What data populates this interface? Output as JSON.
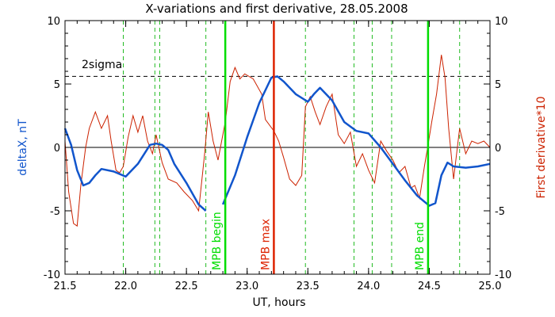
{
  "chart_data": {
    "type": "line",
    "title": "X-variations and first derivative, 28.05.2008",
    "xlabel": "UT, hours",
    "ylabel_left": "deltaX, nT",
    "ylabel_right": "First derivative*10",
    "xlim": [
      21.5,
      25.0
    ],
    "ylim": [
      -10,
      10
    ],
    "x_ticks": [
      "21.5",
      "22.0",
      "22.5",
      "23.0",
      "23.5",
      "24.0",
      "24.5",
      "25.0"
    ],
    "y_ticks_left": [
      "-10",
      "-5",
      "0",
      "5",
      "10"
    ],
    "y_ticks_right": [
      "-10",
      "-5",
      "0",
      "5",
      "10"
    ],
    "threshold": {
      "label": "2sigma",
      "value": 5.6
    },
    "zero_line": 0,
    "colors": {
      "deltaX": "#1155cc",
      "derivative": "#cc2200",
      "mpb": "#00dd00",
      "mpb_max": "#dd2200",
      "dashed_green": "#22bb22",
      "axis": "#000000"
    },
    "vertical_markers": [
      {
        "label": "MPB begin",
        "x": 22.82,
        "color": "#00dd00"
      },
      {
        "label": "MPB max",
        "x": 23.22,
        "color": "#dd2200"
      },
      {
        "label": "MPB end",
        "x": 24.49,
        "color": "#00dd00"
      }
    ],
    "dashed_lines_x": [
      21.98,
      22.24,
      22.28,
      22.66,
      23.48,
      23.88,
      24.03,
      24.19,
      24.75
    ],
    "series": [
      {
        "name": "deltaX",
        "x": [
          21.5,
          21.55,
          21.6,
          21.65,
          21.7,
          21.75,
          21.8,
          21.9,
          22.0,
          22.1,
          22.2,
          22.25,
          22.3,
          22.35,
          22.4,
          22.5,
          22.6,
          22.66,
          22.7,
          22.8,
          22.9,
          23.0,
          23.1,
          23.2,
          23.25,
          23.3,
          23.4,
          23.5,
          23.55,
          23.6,
          23.7,
          23.8,
          23.9,
          24.0,
          24.1,
          24.2,
          24.3,
          24.4,
          24.5,
          24.55,
          24.6,
          24.65,
          24.7,
          24.8,
          24.9,
          25.0
        ],
        "y": [
          1.5,
          0.2,
          -1.8,
          -3.0,
          -2.8,
          -2.2,
          -1.7,
          -1.9,
          -2.3,
          -1.3,
          0.2,
          0.3,
          0.2,
          -0.2,
          -1.3,
          -2.8,
          -4.5,
          -5.0,
          null,
          -4.5,
          -2.2,
          0.8,
          3.5,
          5.5,
          5.6,
          5.2,
          4.2,
          3.6,
          4.2,
          4.7,
          3.7,
          2.0,
          1.3,
          1.1,
          0.0,
          -1.3,
          -2.6,
          -3.8,
          -4.6,
          -4.4,
          -2.2,
          -1.2,
          -1.5,
          -1.6,
          -1.5,
          -1.3
        ]
      },
      {
        "name": "First derivative*10",
        "x": [
          21.5,
          21.53,
          21.57,
          21.6,
          21.63,
          21.67,
          21.7,
          21.75,
          21.8,
          21.85,
          21.88,
          21.92,
          21.95,
          21.98,
          22.02,
          22.06,
          22.1,
          22.14,
          22.18,
          22.22,
          22.25,
          22.3,
          22.35,
          22.42,
          22.48,
          22.55,
          22.6,
          22.65,
          22.68,
          22.72,
          22.76,
          22.82,
          22.86,
          22.9,
          22.94,
          22.98,
          23.05,
          23.12,
          23.15,
          23.22,
          23.26,
          23.3,
          23.35,
          23.4,
          23.45,
          23.48,
          23.52,
          23.56,
          23.6,
          23.65,
          23.7,
          23.75,
          23.8,
          23.85,
          23.9,
          23.95,
          24.0,
          24.05,
          24.1,
          24.15,
          24.2,
          24.25,
          24.3,
          24.35,
          24.38,
          24.42,
          24.46,
          24.49,
          24.52,
          24.56,
          24.6,
          24.63,
          24.66,
          24.7,
          24.75,
          24.8,
          24.85,
          24.9,
          24.95,
          25.0
        ],
        "y": [
          0.5,
          -3.5,
          -6.0,
          -6.2,
          -3.0,
          0.0,
          1.5,
          2.8,
          1.5,
          2.5,
          0.5,
          -1.8,
          -2.0,
          -1.5,
          0.8,
          2.5,
          1.2,
          2.5,
          0.5,
          -0.5,
          1.0,
          -1.2,
          -2.5,
          -2.8,
          -3.5,
          -4.2,
          -5.0,
          -0.5,
          2.8,
          0.5,
          -1.0,
          2.0,
          5.2,
          6.3,
          5.4,
          5.8,
          5.4,
          4.2,
          2.2,
          1.3,
          0.5,
          -0.8,
          -2.5,
          -3.0,
          -2.2,
          3.2,
          4.0,
          2.8,
          1.8,
          3.2,
          4.2,
          1.0,
          0.3,
          1.2,
          -1.5,
          -0.5,
          -1.8,
          -2.8,
          0.5,
          -0.3,
          -1.0,
          -2.0,
          -1.5,
          -3.2,
          -3.0,
          -4.0,
          -1.5,
          0.2,
          2.0,
          4.2,
          7.3,
          5.5,
          1.5,
          -2.5,
          1.5,
          -0.5,
          0.5,
          0.3,
          0.5,
          0.0
        ]
      }
    ]
  }
}
